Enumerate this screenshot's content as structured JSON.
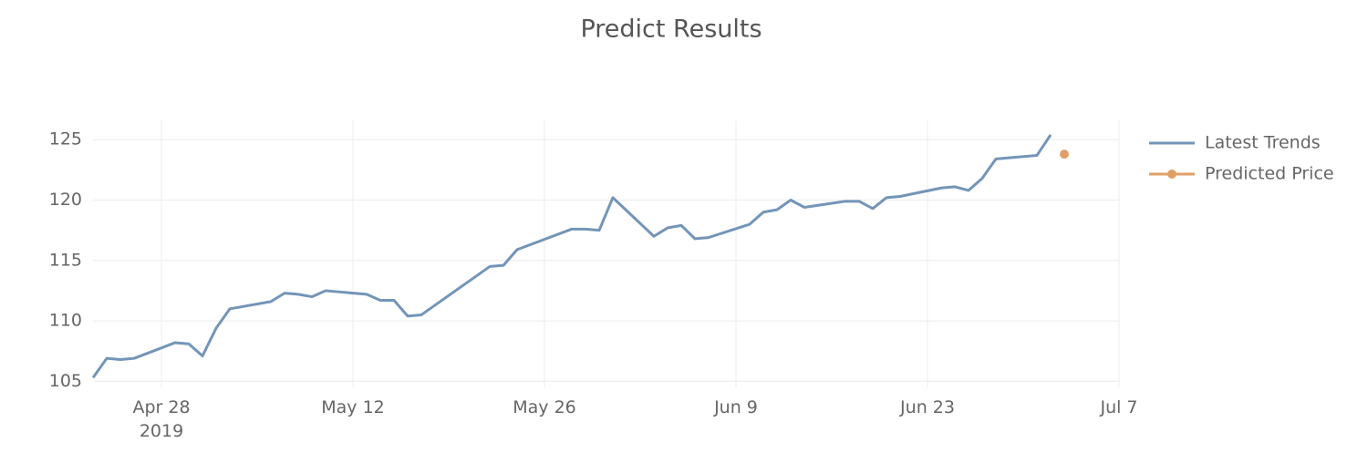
{
  "chart_data": {
    "type": "line",
    "title": "Predict Results",
    "xlim": [
      "2019-04-23",
      "2019-07-07"
    ],
    "xticks": [
      {
        "value": "2019-04-28",
        "label": "Apr 28\n2019"
      },
      {
        "value": "2019-05-12",
        "label": "May 12"
      },
      {
        "value": "2019-05-26",
        "label": "May 26"
      },
      {
        "value": "2019-06-09",
        "label": "Jun 9"
      },
      {
        "value": "2019-06-23",
        "label": "Jun 23"
      },
      {
        "value": "2019-07-07",
        "label": "Jul 7"
      }
    ],
    "ylim": [
      104.5,
      126.6
    ],
    "yticks": [
      105,
      110,
      115,
      120,
      125
    ],
    "grid": true,
    "legend": "right",
    "series": [
      {
        "name": "Latest Trends",
        "color": "#7395b8",
        "mode": "lines",
        "x": [
          "2019-04-23",
          "2019-04-24",
          "2019-04-25",
          "2019-04-26",
          "2019-04-29",
          "2019-04-30",
          "2019-05-01",
          "2019-05-02",
          "2019-05-03",
          "2019-05-06",
          "2019-05-07",
          "2019-05-08",
          "2019-05-09",
          "2019-05-10",
          "2019-05-13",
          "2019-05-14",
          "2019-05-15",
          "2019-05-16",
          "2019-05-17",
          "2019-05-22",
          "2019-05-23",
          "2019-05-24",
          "2019-05-28",
          "2019-05-29",
          "2019-05-30",
          "2019-05-31",
          "2019-06-03",
          "2019-06-04",
          "2019-06-05",
          "2019-06-06",
          "2019-06-07",
          "2019-06-10",
          "2019-06-11",
          "2019-06-12",
          "2019-06-13",
          "2019-06-14",
          "2019-06-17",
          "2019-06-18",
          "2019-06-19",
          "2019-06-20",
          "2019-06-21",
          "2019-06-24",
          "2019-06-25",
          "2019-06-26",
          "2019-06-27",
          "2019-06-28",
          "2019-07-01",
          "2019-07-02"
        ],
        "values": [
          105.3,
          106.9,
          106.8,
          106.9,
          108.2,
          108.1,
          107.1,
          109.4,
          111.0,
          111.6,
          112.3,
          112.2,
          112.0,
          112.5,
          112.2,
          111.7,
          111.7,
          110.4,
          110.5,
          114.5,
          114.6,
          115.9,
          117.6,
          117.6,
          117.5,
          120.2,
          117.0,
          117.7,
          117.9,
          116.8,
          116.9,
          118.0,
          119.0,
          119.2,
          120.0,
          119.4,
          119.9,
          119.9,
          119.3,
          120.2,
          120.3,
          121.0,
          121.1,
          120.8,
          121.8,
          123.4,
          123.7,
          125.4
        ]
      },
      {
        "name": "Predicted Price",
        "color": "#e0a068",
        "mode": "markers",
        "x": [
          "2019-07-03"
        ],
        "values": [
          123.8
        ]
      }
    ]
  }
}
